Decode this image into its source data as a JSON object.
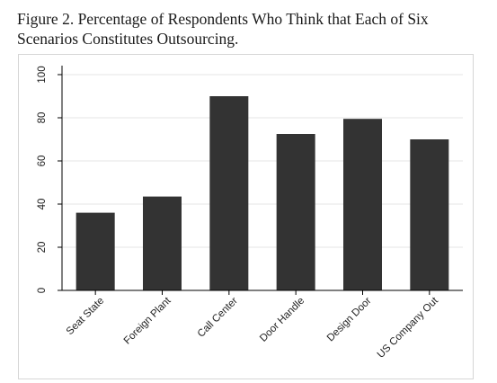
{
  "figure": {
    "title": "Figure 2. Percentage of Respondents Who Think that Each of Six Scenarios Constitutes Outsourcing."
  },
  "chart_data": {
    "type": "bar",
    "title": "Figure 2. Percentage of Respondents Who Think that Each of Six Scenarios Constitutes Outsourcing.",
    "categories": [
      "Seat State",
      "Foreign Plant",
      "Call Center",
      "Door Handle",
      "Design Door",
      "US Company Out"
    ],
    "values": [
      36,
      43.5,
      90,
      72.5,
      79.5,
      70
    ],
    "ylim": [
      0,
      100
    ],
    "yticks": [
      "0",
      "20",
      "40",
      "60",
      "80",
      "100"
    ],
    "xlabel": "",
    "ylabel": "",
    "grid": true,
    "legend": "none",
    "colors": {
      "bar": "#333333",
      "grid": "#e6e6e6",
      "axis": "#000000",
      "frame": "#d6d6d6"
    }
  }
}
